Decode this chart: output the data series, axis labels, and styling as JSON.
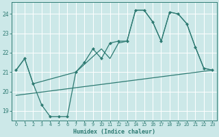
{
  "xlabel": "Humidex (Indice chaleur)",
  "bg_color": "#cce8e8",
  "line_color": "#2d7a72",
  "grid_color": "#ffffff",
  "xlim": [
    -0.5,
    23.5
  ],
  "ylim": [
    18.5,
    24.6
  ],
  "yticks": [
    19,
    20,
    21,
    22,
    23,
    24
  ],
  "xticks": [
    0,
    1,
    2,
    3,
    4,
    5,
    6,
    7,
    8,
    9,
    10,
    11,
    12,
    13,
    14,
    15,
    16,
    17,
    18,
    19,
    20,
    21,
    22,
    23
  ],
  "line1_x": [
    0,
    1,
    2,
    3,
    4,
    5,
    6,
    7,
    8,
    9,
    10,
    11,
    12,
    13,
    14,
    15,
    16,
    17,
    18,
    19,
    20,
    21,
    22,
    23
  ],
  "line1_y": [
    21.1,
    21.7,
    20.4,
    19.3,
    18.7,
    18.7,
    18.7,
    21.0,
    21.5,
    22.2,
    21.7,
    22.5,
    22.6,
    22.6,
    24.2,
    24.2,
    23.6,
    22.6,
    24.1,
    24.0,
    23.5,
    22.3,
    21.2,
    21.1
  ],
  "line2_x": [
    0,
    1,
    2,
    7,
    10,
    11,
    12,
    13,
    14,
    15,
    16,
    17,
    18,
    19,
    20,
    21,
    22,
    23
  ],
  "line2_y": [
    21.1,
    21.7,
    20.4,
    21.0,
    22.2,
    21.7,
    22.5,
    22.6,
    24.2,
    24.2,
    23.6,
    22.6,
    24.1,
    24.0,
    23.5,
    22.3,
    21.2,
    21.1
  ],
  "line3_x": [
    0,
    23
  ],
  "line3_y": [
    19.8,
    21.1
  ]
}
